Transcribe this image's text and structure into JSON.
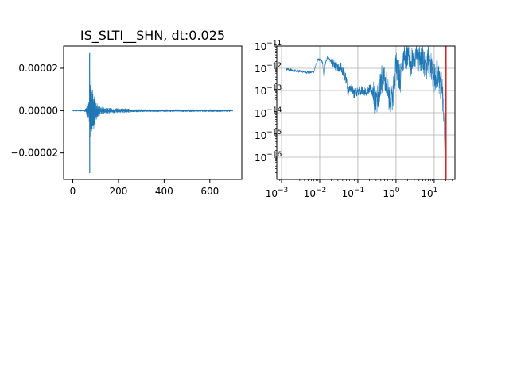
{
  "chart_data": [
    {
      "type": "line",
      "title": "IS_SLTI__SHN, dt:0.025",
      "xlabel": "",
      "ylabel": "",
      "xlim": [
        -40,
        740
      ],
      "ylim": [
        -3.25e-05,
        3.05e-05
      ],
      "x_ticks": [
        0,
        200,
        400,
        600
      ],
      "x_tick_labels": [
        "0",
        "200",
        "400",
        "600"
      ],
      "y_ticks": [
        -2e-05,
        0,
        2e-05
      ],
      "y_tick_labels": [
        "−0.00002",
        "0.00000",
        "0.00002"
      ],
      "grid": false,
      "series_color": "#1f77b4",
      "signal_extent": [
        0,
        700
      ],
      "peak_time": 74,
      "max_value": 2.72e-05,
      "min_value": -2.95e-05
    },
    {
      "type": "line",
      "title": "",
      "xlabel": "",
      "ylabel": "",
      "xscale": "log",
      "yscale": "log",
      "xlim": [
        0.00075,
        35
      ],
      "ylim": [
        1e-17,
        1e-11
      ],
      "x_ticks": [
        0.001,
        0.01,
        0.1,
        1,
        10
      ],
      "x_tick_labels": [
        [
          "10",
          "−3"
        ],
        [
          "10",
          "−2"
        ],
        [
          "10",
          "−1"
        ],
        [
          "10",
          "0"
        ],
        [
          "10",
          "1"
        ]
      ],
      "y_ticks": [
        1e-16,
        1e-15,
        1e-14,
        1e-13,
        1e-12,
        1e-11
      ],
      "y_tick_labels": [
        [
          "10",
          "−16"
        ],
        [
          "10",
          "−15"
        ],
        [
          "10",
          "−14"
        ],
        [
          "10",
          "−13"
        ],
        [
          "10",
          "−12"
        ],
        [
          "10",
          "−11"
        ]
      ],
      "grid": true,
      "series_color": "#1f77b4",
      "marker_line": {
        "x": 20,
        "color": "#d62728"
      },
      "spectrum": [
        [
          0.0013,
          9e-13
        ],
        [
          0.002,
          8e-13
        ],
        [
          0.003,
          7.5e-13
        ],
        [
          0.005,
          6.5e-13
        ],
        [
          0.007,
          7e-13
        ],
        [
          0.008,
          1.5e-12
        ],
        [
          0.009,
          2.5e-12
        ],
        [
          0.011,
          2.3e-12
        ],
        [
          0.012,
          1.6e-12
        ],
        [
          0.013,
          3e-13
        ],
        [
          0.014,
          1.6e-12
        ],
        [
          0.016,
          3.2e-12
        ],
        [
          0.02,
          2e-12
        ],
        [
          0.025,
          1.4e-12
        ],
        [
          0.03,
          1e-12
        ],
        [
          0.035,
          1.2e-12
        ],
        [
          0.04,
          8e-13
        ],
        [
          0.05,
          3e-13
        ],
        [
          0.055,
          7e-14
        ],
        [
          0.06,
          1.2e-13
        ],
        [
          0.07,
          1.2e-13
        ],
        [
          0.08,
          7e-14
        ],
        [
          0.1,
          1e-13
        ],
        [
          0.13,
          1e-13
        ],
        [
          0.16,
          8e-14
        ],
        [
          0.2,
          1.3e-13
        ],
        [
          0.25,
          8e-14
        ],
        [
          0.3,
          2e-14
        ],
        [
          0.35,
          7e-14
        ],
        [
          0.4,
          2.5e-13
        ],
        [
          0.5,
          6e-13
        ],
        [
          0.6,
          1.2e-13
        ],
        [
          0.7,
          3e-14
        ],
        [
          0.8,
          4e-14
        ],
        [
          1,
          1.5e-12
        ],
        [
          1.3,
          3e-13
        ],
        [
          1.6,
          3e-12
        ],
        [
          2,
          4e-12
        ],
        [
          2.5,
          1.5e-12
        ],
        [
          3,
          5e-12
        ],
        [
          4,
          2e-12
        ],
        [
          5,
          3e-12
        ],
        [
          6,
          8e-13
        ],
        [
          7,
          2.8e-12
        ],
        [
          8,
          1.5e-12
        ],
        [
          10,
          3e-13
        ],
        [
          12,
          7e-13
        ],
        [
          14,
          2e-13
        ],
        [
          16,
          1.5e-13
        ],
        [
          18,
          6e-15
        ],
        [
          19,
          2e-16
        ],
        [
          19.5,
          2e-17
        ]
      ]
    }
  ]
}
